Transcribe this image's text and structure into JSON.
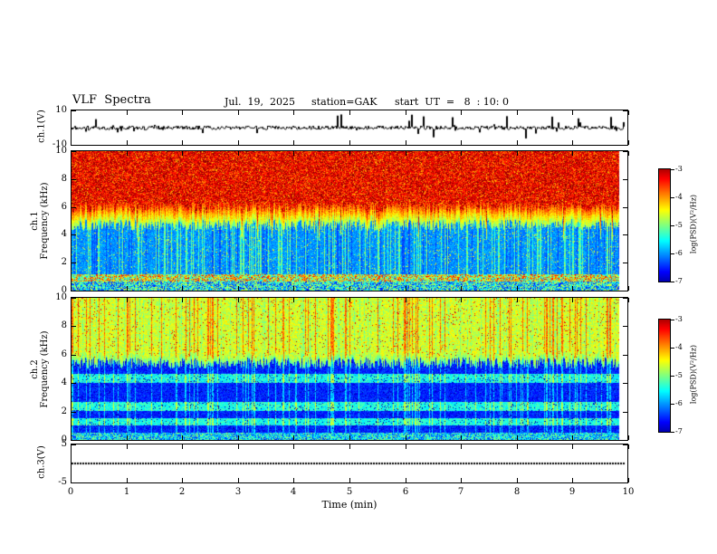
{
  "header": {
    "title": "VLF  Spectra",
    "date": "Jul.  19,  2025",
    "station": "station=GAK",
    "start_ut": "start  UT  =   8  : 10: 0"
  },
  "xaxis": {
    "label": "Time  (min)",
    "ticks": [
      0,
      1,
      2,
      3,
      4,
      5,
      6,
      7,
      8,
      9,
      10
    ],
    "range": [
      0,
      10
    ]
  },
  "colorbar": {
    "label": "log(PSD)(V²/Hz)",
    "ticks": [
      -3,
      -4,
      -5,
      -6,
      -7
    ],
    "range": [
      -7,
      -3
    ]
  },
  "panels": {
    "ch1_wave": {
      "ylabel": "ch.1(V)",
      "ylim": [
        -10,
        10
      ],
      "yticks": [
        10,
        -10
      ]
    },
    "ch1_spec": {
      "label_channel": "ch.1",
      "label_axis": "Frequency (kHz)",
      "ylim": [
        0,
        10
      ],
      "yticks": [
        0,
        2,
        4,
        6,
        8,
        10
      ]
    },
    "ch2_spec": {
      "label_channel": "ch.2",
      "label_axis": "Frequency (kHz)",
      "ylim": [
        0,
        10
      ],
      "yticks": [
        0,
        2,
        4,
        6,
        8,
        10
      ]
    },
    "ch3_wave": {
      "ylabel": "ch.3(V)",
      "ylim": [
        -5,
        5
      ],
      "yticks": [
        5,
        -5
      ]
    }
  },
  "chart_data": [
    {
      "type": "line",
      "panel": "ch1_waveform",
      "ylabel": "ch.1(V)",
      "xlim": [
        0,
        10
      ],
      "ylim": [
        -10,
        10
      ],
      "x_units": "min",
      "description": "Dense broadband noise trace centered on 0 V with frequent impulsive spikes reaching roughly ±8 V throughout the 0–9.8 min record."
    },
    {
      "type": "heatmap",
      "panel": "ch1_spectrogram",
      "ylabel": "Frequency (kHz)",
      "xlim": [
        0,
        10
      ],
      "ylim": [
        0,
        10
      ],
      "value_label": "log(PSD)(V²/Hz)",
      "value_range": [
        -7,
        -3
      ],
      "colormap": "rainbow",
      "description": "Intense red/orange power (about -3 to -3.5) above ~5.5-6 kHz with a ragged yellow-green transition near 5 kHz; blue background (about -6 to -6.5) below 4.5 kHz crossed by dense vertical green/cyan striations from impulsive events; mottled multicolor noise band below ~1 kHz."
    },
    {
      "type": "heatmap",
      "panel": "ch2_spectrogram",
      "ylabel": "Frequency (kHz)",
      "xlim": [
        0,
        10
      ],
      "ylim": [
        0,
        10
      ],
      "value_label": "log(PSD)(V²/Hz)",
      "value_range": [
        -7,
        -3
      ],
      "colormap": "rainbow",
      "description": "Green-yellow power (about -4.5 to -5) with sparse orange specks above ~5.5 kHz; dark blue/black background below with cyan horizontal bands near ~1.2, ~2.3 and ~4.4 kHz, vertical striations from impulses, and black low-power patches; mottled band below ~0.5 kHz."
    },
    {
      "type": "line",
      "panel": "ch3_waveform",
      "ylabel": "ch.3(V)",
      "xlim": [
        0,
        10
      ],
      "ylim": [
        -5,
        5
      ],
      "description": "Constant flat trace at 0 V rendered as a thick dotted black line for the full record."
    }
  ]
}
